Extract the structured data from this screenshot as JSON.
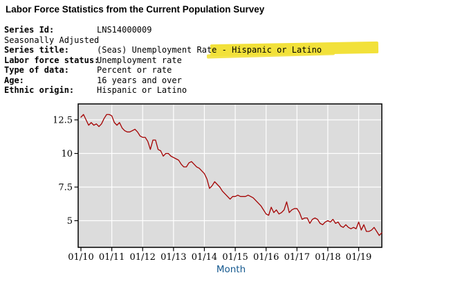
{
  "page": {
    "title": "Labor Force Statistics from the Current Population Survey"
  },
  "series_info": {
    "highlight_color": "#f2e13a",
    "rows": [
      {
        "label": "Series Id:",
        "value": "LNS14000009"
      },
      {
        "label": "Seasonally Adjusted",
        "value": ""
      },
      {
        "label": "Series title:",
        "value": "(Seas) Unemployment Rate - Hispanic or Latino"
      },
      {
        "label": "Labor force status:",
        "value": "Unemployment rate"
      },
      {
        "label": "Type of data:",
        "value": "Percent or rate"
      },
      {
        "label": "Age:",
        "value": "16 years and over"
      },
      {
        "label": "Ethnic origin:",
        "value": "Hispanic or Latino"
      }
    ]
  },
  "chart_data": {
    "type": "line",
    "title": "",
    "xlabel": "Month",
    "ylabel": "",
    "x_start": "2010-01",
    "x_end": "2019-10",
    "x_tick_labels": [
      "01/10",
      "01/11",
      "01/12",
      "01/13",
      "01/14",
      "01/15",
      "01/16",
      "01/17",
      "01/18",
      "01/19"
    ],
    "y_tick_values": [
      12.5,
      10,
      7.5,
      5
    ],
    "y_tick_labels": [
      "12.5",
      "10",
      "7.5",
      "5"
    ],
    "ylim": [
      2.8,
      13.7
    ],
    "grid": true,
    "legend": false,
    "colors": {
      "line": "#a40000",
      "plot_bg": "#dcdcdc",
      "grid": "#ffffff",
      "border": "#000000",
      "xlabel_color": "#15598f"
    },
    "series": [
      {
        "name": "(Seas) Unemployment Rate - Hispanic or Latino",
        "frequency": "monthly",
        "values": [
          12.7,
          12.9,
          12.5,
          12.1,
          12.3,
          12.1,
          12.2,
          12.0,
          12.2,
          12.6,
          12.9,
          12.9,
          12.8,
          12.3,
          12.1,
          12.3,
          11.9,
          11.7,
          11.6,
          11.6,
          11.7,
          11.8,
          11.6,
          11.3,
          11.2,
          11.2,
          10.9,
          10.3,
          11.0,
          11.0,
          10.3,
          10.2,
          9.8,
          10.0,
          10.0,
          9.8,
          9.7,
          9.6,
          9.5,
          9.2,
          9.0,
          9.0,
          9.3,
          9.4,
          9.2,
          9.0,
          8.9,
          8.7,
          8.5,
          8.1,
          7.4,
          7.6,
          7.9,
          7.7,
          7.5,
          7.2,
          7.0,
          6.8,
          6.6,
          6.8,
          6.8,
          6.9,
          6.8,
          6.8,
          6.8,
          6.9,
          6.8,
          6.7,
          6.5,
          6.3,
          6.1,
          5.8,
          5.5,
          5.4,
          6.0,
          5.6,
          5.8,
          5.5,
          5.6,
          5.8,
          6.4,
          5.6,
          5.8,
          5.9,
          5.9,
          5.6,
          5.1,
          5.2,
          5.2,
          4.8,
          5.1,
          5.2,
          5.1,
          4.8,
          4.7,
          4.9,
          5.0,
          4.9,
          5.1,
          4.8,
          4.9,
          4.6,
          4.5,
          4.7,
          4.5,
          4.4,
          4.5,
          4.4,
          4.9,
          4.3,
          4.7,
          4.2,
          4.2,
          4.3,
          4.5,
          4.2,
          3.9,
          4.1
        ]
      }
    ]
  }
}
